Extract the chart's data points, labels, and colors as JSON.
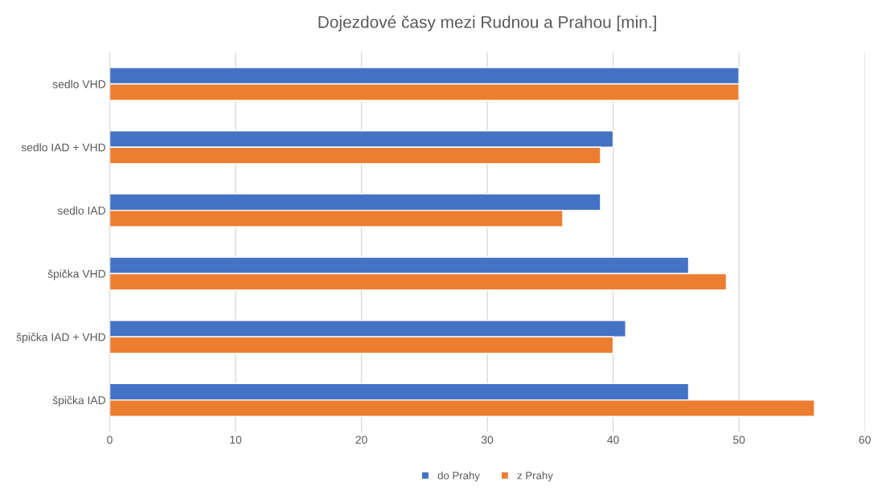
{
  "chart_data": {
    "type": "bar",
    "orientation": "horizontal",
    "title": "Dojezdové časy mezi Rudnou a Prahou [min.]",
    "categories": [
      "sedlo VHD",
      "sedlo IAD + VHD",
      "sedlo IAD",
      "špička VHD",
      "špička IAD + VHD",
      "špička IAD"
    ],
    "series": [
      {
        "name": "do Prahy",
        "color": "#4472c4",
        "values": [
          50,
          40,
          39,
          46,
          41,
          46
        ]
      },
      {
        "name": "z Prahy",
        "color": "#ed7d31",
        "values": [
          50,
          39,
          36,
          49,
          40,
          56
        ]
      }
    ],
    "xlim": [
      0,
      60
    ],
    "xticks": [
      0,
      10,
      20,
      30,
      40,
      50,
      60
    ],
    "grid": "x",
    "legend": "bottom"
  }
}
